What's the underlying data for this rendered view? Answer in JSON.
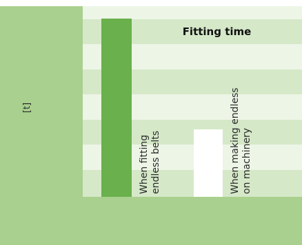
{
  "unit_label": "[t]",
  "heading": "Fitting time",
  "columns": [
    {
      "line1": "When fitting",
      "line2": "endless belts"
    },
    {
      "line1": "When making endless",
      "line2": "on machinery"
    }
  ],
  "colors": {
    "side_panel": "#a9d08e",
    "row_light": "#edf5e6",
    "row_dark": "#d5e8c8",
    "accent_bar": "#6ab04c"
  }
}
